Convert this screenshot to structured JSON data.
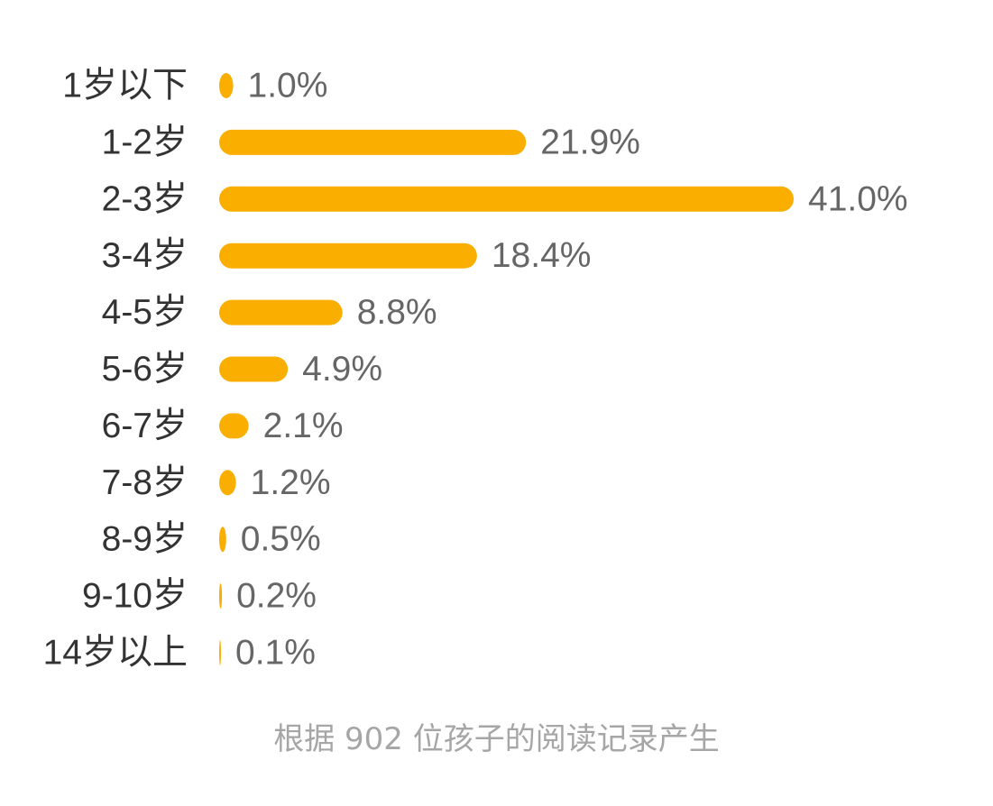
{
  "chart_data": {
    "type": "bar",
    "orientation": "horizontal",
    "categories": [
      "1岁以下",
      "1-2岁",
      "2-3岁",
      "3-4岁",
      "4-5岁",
      "5-6岁",
      "6-7岁",
      "7-8岁",
      "8-9岁",
      "9-10岁",
      "14岁以上"
    ],
    "values": [
      1.0,
      21.9,
      41.0,
      18.4,
      8.8,
      4.9,
      2.1,
      1.2,
      0.5,
      0.2,
      0.1
    ],
    "value_labels": [
      "1.0%",
      "21.9%",
      "41.0%",
      "18.4%",
      "8.8%",
      "4.9%",
      "2.1%",
      "1.2%",
      "0.5%",
      "0.2%",
      "0.1%"
    ],
    "unit": "%",
    "bar_color": "#F9AE00",
    "grid": false,
    "legend": "none"
  },
  "footnote": "根据 902 位孩子的阅读记录产生"
}
